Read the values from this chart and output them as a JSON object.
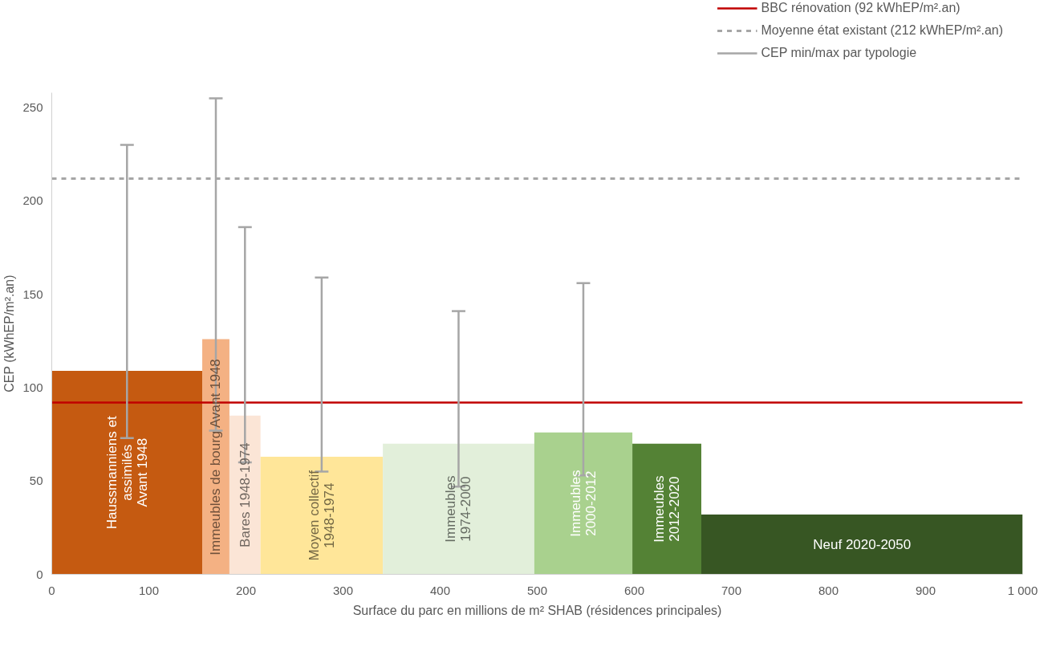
{
  "chart_data": {
    "type": "histogram",
    "xlabel": "Surface du parc en millions de m² SHAB (résidences principales)",
    "ylabel": "CEP (kWhEP/m².an)",
    "bins": [
      0,
      155,
      183,
      215,
      341,
      497,
      598,
      669,
      1000
    ],
    "values": [
      109,
      126,
      85,
      63,
      70,
      76,
      70,
      32
    ],
    "colors": [
      "#c55a11",
      "#f4b183",
      "#fbe5d6",
      "#ffe699",
      "#e2efda",
      "#a9d18e",
      "#548235",
      "#375623"
    ],
    "errors": [
      [
        73,
        230
      ],
      [
        77,
        255
      ],
      [
        60,
        186
      ],
      [
        55,
        159
      ],
      [
        47,
        141
      ],
      [
        53,
        156
      ],
      null,
      null
    ],
    "xlim": [
      0,
      1000
    ],
    "ylim": [
      0,
      258
    ],
    "xticks": [
      0,
      100,
      200,
      300,
      400,
      500,
      600,
      700,
      800,
      900,
      {
        "value": 1000,
        "label": "1 000"
      }
    ],
    "yticks": [
      0,
      50,
      100,
      150,
      200,
      250
    ],
    "ref_lines": [
      {
        "axis": "y",
        "value": 92,
        "label": "BBC rénovation (92 kWhEP/m².an)",
        "color": "#c00000",
        "line_style": "solid"
      },
      {
        "axis": "y",
        "value": 212,
        "label": "Moyenne état existant (212 kWhEP/m².an)",
        "color": "#a6a6a6",
        "line_style": "dashed"
      }
    ],
    "categories": [
      "Haussmanniens et\nassimilés\nAvant 1948",
      "Immeubles de bourg Avant 1948",
      "Bares 1948-1974",
      "Moyen collectif\n1948-1974",
      "Immeubles\n1974-2000",
      "Immeubles\n2000-2012",
      "Immeubles\n2012-2020",
      "Neuf 2020-2050"
    ],
    "annotations": [
      "CEP min/max par typologie"
    ],
    "legend": "top right",
    "grid": false
  }
}
